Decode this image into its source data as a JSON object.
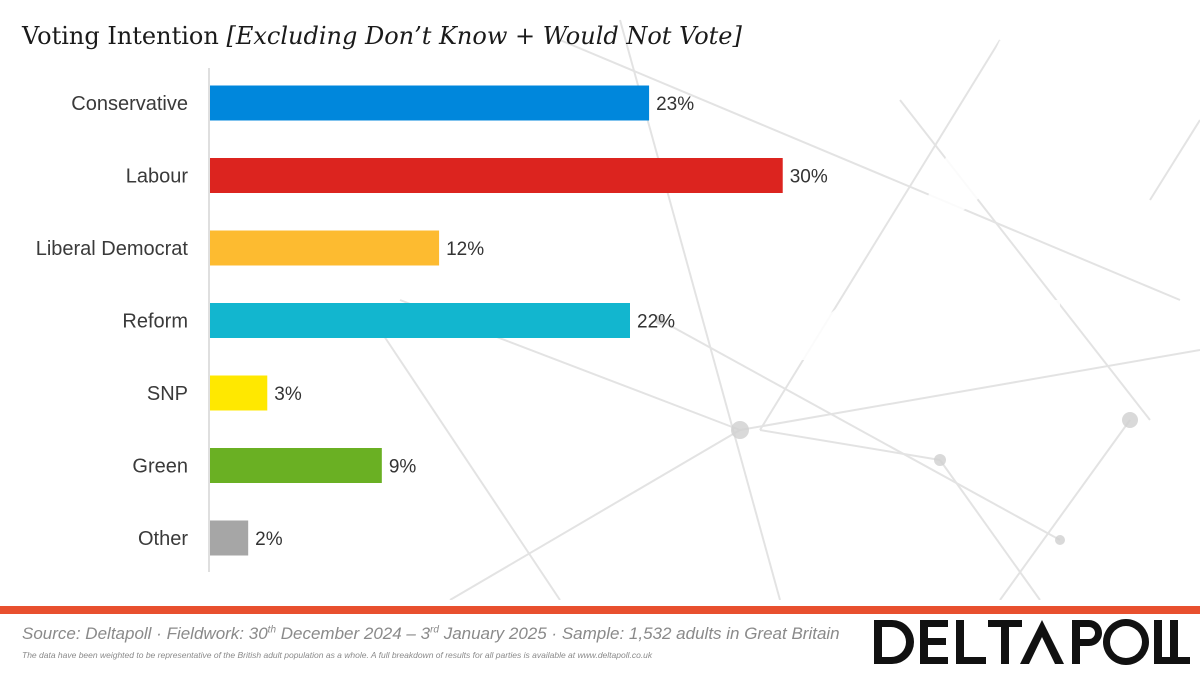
{
  "header": {
    "title_main": "Voting Intention",
    "title_sub": "[Excluding Don’t Know + Would Not Vote]"
  },
  "chart_data": {
    "type": "bar",
    "orientation": "horizontal",
    "title": "Voting Intention [Excluding Don’t Know + Would Not Vote]",
    "categories": [
      "Conservative",
      "Labour",
      "Liberal Democrat",
      "Reform",
      "SNP",
      "Green",
      "Other"
    ],
    "values": [
      23,
      30,
      12,
      22,
      3,
      9,
      2
    ],
    "value_labels": [
      "23%",
      "30%",
      "12%",
      "22%",
      "3%",
      "9%",
      "2%"
    ],
    "colors": [
      "#0087DC",
      "#DC241F",
      "#FDBB30",
      "#12B6CF",
      "#FFE800",
      "#6AB023",
      "#A6A6A6"
    ],
    "xlabel": "",
    "ylabel": "",
    "xlim": [
      0,
      33
    ],
    "grid": false,
    "legend": "none"
  },
  "footer": {
    "source_pre": "Source: Deltapoll · Fieldwork: 30",
    "sup1": "th",
    "source_mid": " December 2024 – 3",
    "sup2": "rd",
    "source_post": " January 2025 · Sample: 1,532 adults in Great Britain",
    "note": "The data have been weighted to be representative of the British adult population as a whole. A full breakdown of results for all parties is available at www.deltapoll.co.uk",
    "bar_color": "#E8502E"
  },
  "logo": {
    "text": "DELTAPOLL"
  }
}
